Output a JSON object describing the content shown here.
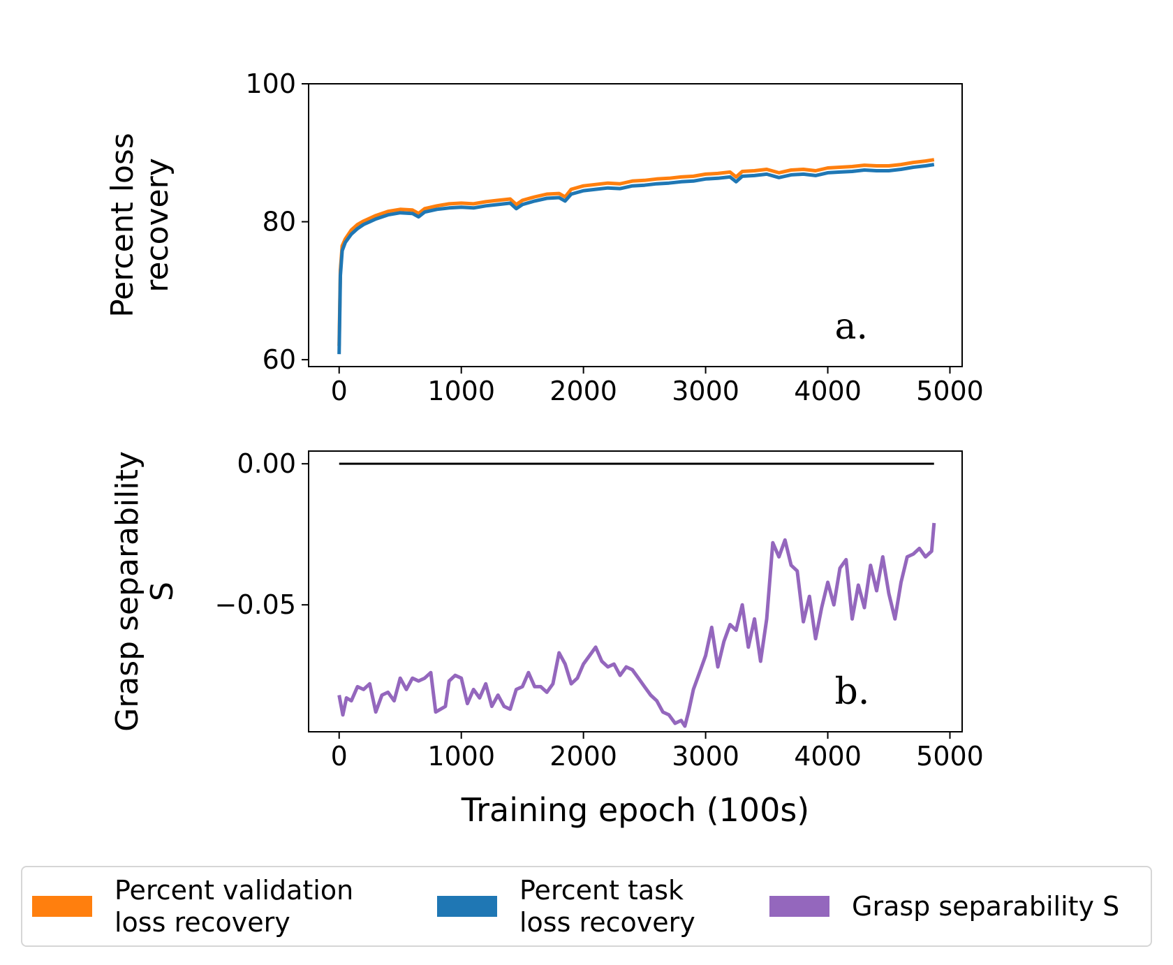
{
  "colors": {
    "validation": "#ff7f0e",
    "task": "#1f77b4",
    "separability": "#9467bd",
    "zero_line": "#000000"
  },
  "chart_data": [
    {
      "type": "line",
      "panel_label": "a.",
      "ylabel_lines": [
        "Percent loss",
        "recovery"
      ],
      "xlim": [
        -250,
        5100
      ],
      "ylim": [
        59,
        100
      ],
      "xticks": [
        0,
        1000,
        2000,
        3000,
        4000,
        5000
      ],
      "xtick_labels": [
        "0",
        "1000",
        "2000",
        "3000",
        "4000",
        "5000"
      ],
      "yticks": [
        60,
        80,
        100
      ],
      "ytick_labels": [
        "60",
        "80",
        "100"
      ],
      "series": [
        {
          "name": "Percent validation loss recovery",
          "color_key": "validation",
          "x": [
            0,
            10,
            25,
            50,
            100,
            150,
            200,
            250,
            300,
            400,
            500,
            600,
            650,
            700,
            800,
            900,
            1000,
            1100,
            1200,
            1300,
            1400,
            1450,
            1500,
            1600,
            1700,
            1800,
            1850,
            1900,
            2000,
            2100,
            2200,
            2300,
            2400,
            2500,
            2600,
            2700,
            2800,
            2900,
            3000,
            3100,
            3200,
            3250,
            3300,
            3400,
            3500,
            3600,
            3700,
            3800,
            3900,
            4000,
            4100,
            4200,
            4300,
            4400,
            4500,
            4600,
            4700,
            4800,
            4870
          ],
          "y": [
            62,
            73,
            76.5,
            77.5,
            78.8,
            79.6,
            80.1,
            80.5,
            80.9,
            81.5,
            81.8,
            81.7,
            81.2,
            81.9,
            82.3,
            82.6,
            82.7,
            82.6,
            82.9,
            83.1,
            83.3,
            82.5,
            83.1,
            83.6,
            84.0,
            84.1,
            83.6,
            84.7,
            85.2,
            85.4,
            85.6,
            85.5,
            85.9,
            86.0,
            86.2,
            86.3,
            86.5,
            86.6,
            86.9,
            87.0,
            87.2,
            86.5,
            87.3,
            87.4,
            87.6,
            87.1,
            87.5,
            87.6,
            87.4,
            87.8,
            87.9,
            88.0,
            88.2,
            88.1,
            88.1,
            88.3,
            88.6,
            88.8,
            89.0
          ]
        },
        {
          "name": "Percent task loss recovery",
          "color_key": "task",
          "x": [
            0,
            10,
            25,
            50,
            100,
            150,
            200,
            250,
            300,
            400,
            500,
            600,
            650,
            700,
            800,
            900,
            1000,
            1100,
            1200,
            1300,
            1400,
            1450,
            1500,
            1600,
            1700,
            1800,
            1850,
            1900,
            2000,
            2100,
            2200,
            2300,
            2400,
            2500,
            2600,
            2700,
            2800,
            2900,
            3000,
            3100,
            3200,
            3250,
            3300,
            3400,
            3500,
            3600,
            3700,
            3800,
            3900,
            4000,
            4100,
            4200,
            4300,
            4400,
            4500,
            4600,
            4700,
            4800,
            4870
          ],
          "y": [
            60.8,
            72.2,
            75.8,
            77.0,
            78.2,
            79.0,
            79.6,
            80.0,
            80.4,
            81.0,
            81.3,
            81.2,
            80.7,
            81.4,
            81.8,
            82.0,
            82.1,
            82.0,
            82.3,
            82.5,
            82.7,
            81.9,
            82.5,
            83.0,
            83.4,
            83.5,
            83.0,
            84.0,
            84.5,
            84.7,
            84.9,
            84.8,
            85.2,
            85.3,
            85.5,
            85.6,
            85.8,
            85.9,
            86.2,
            86.3,
            86.5,
            85.8,
            86.6,
            86.7,
            86.9,
            86.4,
            86.8,
            86.9,
            86.7,
            87.1,
            87.2,
            87.3,
            87.5,
            87.4,
            87.4,
            87.6,
            87.9,
            88.1,
            88.3
          ]
        }
      ]
    },
    {
      "type": "line",
      "panel_label": "b.",
      "ylabel_lines": [
        "Grasp separability",
        "S"
      ],
      "xlabel": "Training epoch (100s)",
      "xlim": [
        -250,
        5100
      ],
      "ylim": [
        -0.095,
        0.0045
      ],
      "xticks": [
        0,
        1000,
        2000,
        3000,
        4000,
        5000
      ],
      "xtick_labels": [
        "0",
        "1000",
        "2000",
        "3000",
        "4000",
        "5000"
      ],
      "yticks": [
        0.0,
        -0.05
      ],
      "ytick_labels": [
        "0.00",
        "−0.05"
      ],
      "zero_line": {
        "x": [
          0,
          4870
        ],
        "y": [
          0,
          0
        ]
      },
      "series": [
        {
          "name": "Grasp separability S",
          "color_key": "separability",
          "x": [
            0,
            30,
            60,
            100,
            150,
            200,
            250,
            300,
            350,
            400,
            450,
            500,
            550,
            600,
            650,
            700,
            750,
            790,
            830,
            870,
            900,
            950,
            1000,
            1050,
            1100,
            1150,
            1200,
            1250,
            1300,
            1350,
            1400,
            1450,
            1500,
            1550,
            1600,
            1650,
            1700,
            1750,
            1800,
            1850,
            1900,
            1950,
            2000,
            2050,
            2100,
            2150,
            2200,
            2250,
            2300,
            2350,
            2400,
            2450,
            2500,
            2550,
            2600,
            2650,
            2700,
            2750,
            2800,
            2830,
            2860,
            2900,
            2950,
            3000,
            3050,
            3100,
            3150,
            3200,
            3250,
            3300,
            3350,
            3400,
            3450,
            3500,
            3550,
            3600,
            3650,
            3700,
            3750,
            3800,
            3850,
            3900,
            3950,
            4000,
            4050,
            4100,
            4150,
            4200,
            4250,
            4300,
            4350,
            4400,
            4450,
            4500,
            4550,
            4600,
            4650,
            4700,
            4750,
            4800,
            4850,
            4870
          ],
          "y": [
            -0.082,
            -0.089,
            -0.083,
            -0.084,
            -0.079,
            -0.08,
            -0.078,
            -0.088,
            -0.082,
            -0.081,
            -0.084,
            -0.076,
            -0.08,
            -0.076,
            -0.077,
            -0.076,
            -0.074,
            -0.088,
            -0.087,
            -0.086,
            -0.077,
            -0.075,
            -0.076,
            -0.085,
            -0.08,
            -0.083,
            -0.078,
            -0.086,
            -0.082,
            -0.086,
            -0.087,
            -0.08,
            -0.079,
            -0.074,
            -0.079,
            -0.079,
            -0.081,
            -0.078,
            -0.067,
            -0.071,
            -0.078,
            -0.076,
            -0.071,
            -0.068,
            -0.065,
            -0.07,
            -0.072,
            -0.071,
            -0.075,
            -0.072,
            -0.073,
            -0.076,
            -0.079,
            -0.082,
            -0.084,
            -0.088,
            -0.089,
            -0.092,
            -0.091,
            -0.093,
            -0.088,
            -0.08,
            -0.074,
            -0.068,
            -0.058,
            -0.072,
            -0.063,
            -0.057,
            -0.059,
            -0.05,
            -0.065,
            -0.055,
            -0.07,
            -0.055,
            -0.028,
            -0.033,
            -0.027,
            -0.036,
            -0.038,
            -0.056,
            -0.047,
            -0.062,
            -0.051,
            -0.042,
            -0.05,
            -0.037,
            -0.034,
            -0.055,
            -0.043,
            -0.051,
            -0.036,
            -0.045,
            -0.033,
            -0.046,
            -0.055,
            -0.042,
            -0.033,
            -0.032,
            -0.03,
            -0.033,
            -0.031,
            -0.021
          ]
        }
      ]
    }
  ],
  "legend": {
    "items": [
      {
        "label": "Percent validation\nloss recovery",
        "color_key": "validation"
      },
      {
        "label": "Percent task\nloss recovery",
        "color_key": "task"
      },
      {
        "label": "Grasp separability S",
        "color_key": "separability"
      }
    ]
  }
}
